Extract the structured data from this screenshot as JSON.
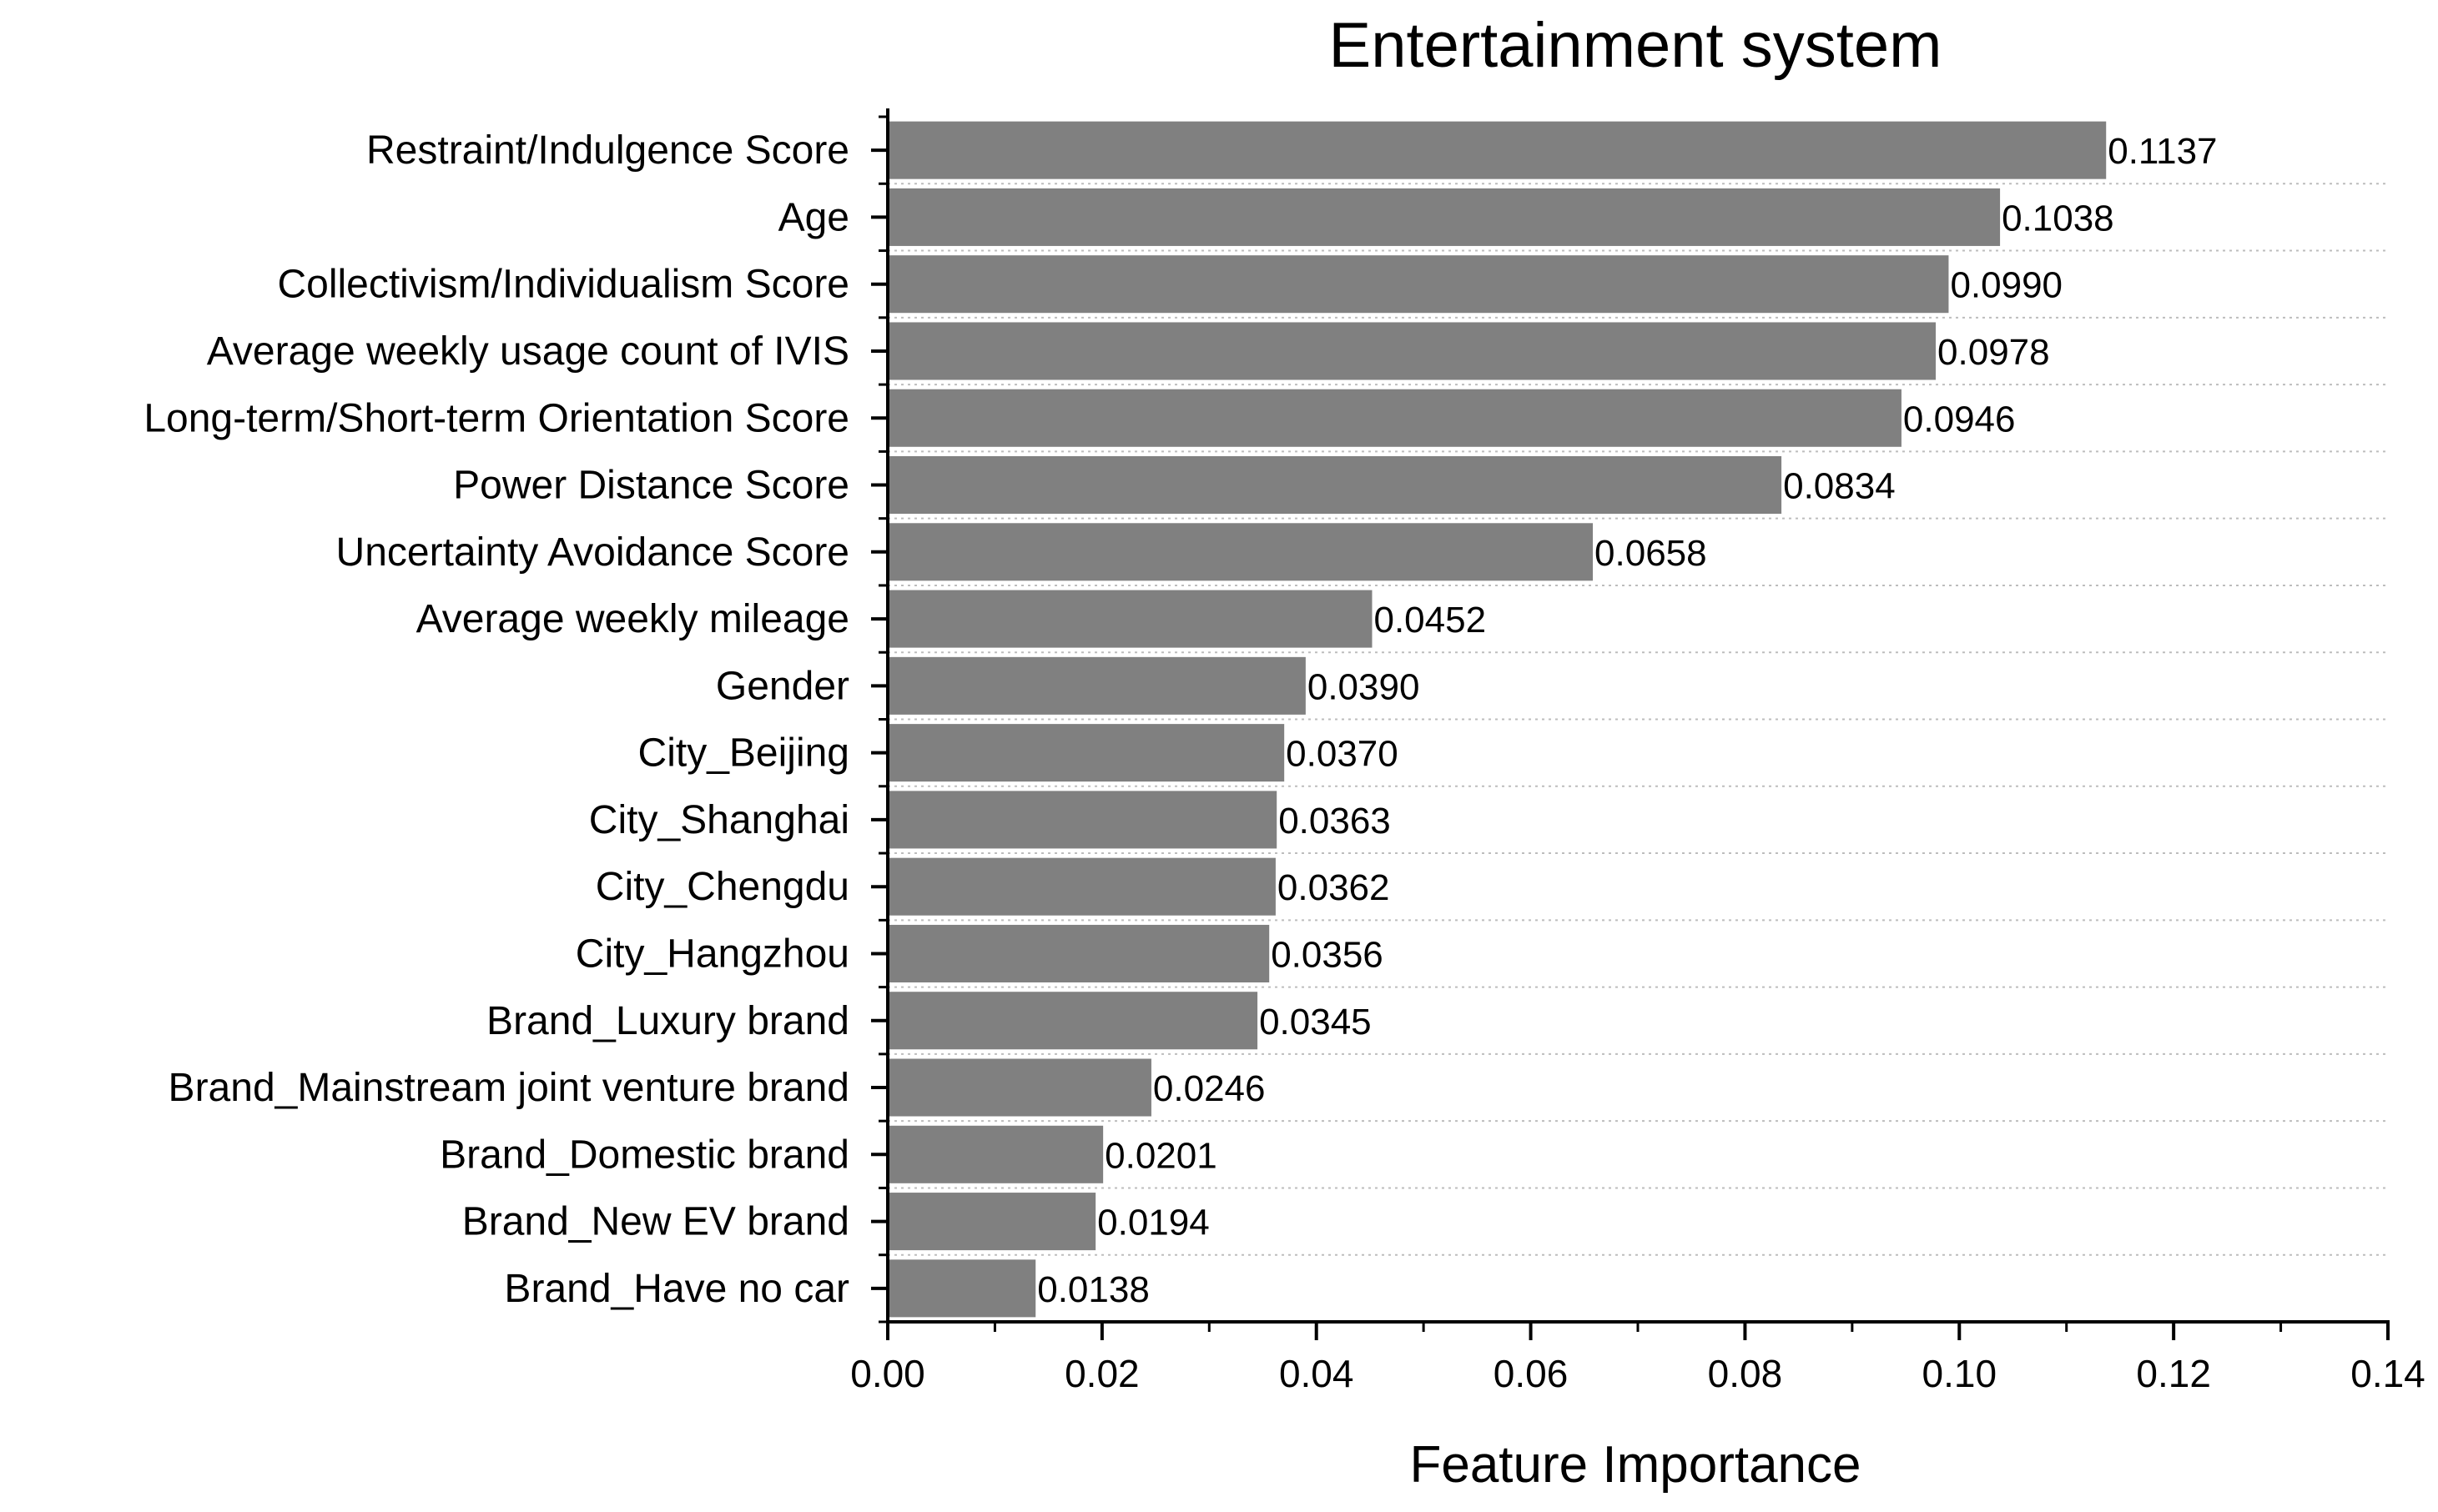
{
  "chart_data": {
    "type": "bar",
    "orientation": "horizontal",
    "title": "Entertainment system",
    "xlabel": "Feature Importance",
    "ylabel": "",
    "xlim": [
      0,
      0.14
    ],
    "xticks": [
      "0.00",
      "0.02",
      "0.04",
      "0.06",
      "0.08",
      "0.10",
      "0.12",
      "0.14"
    ],
    "categories": [
      "Restraint/Indulgence Score",
      "Age",
      "Collectivism/Individualism Score",
      "Average weekly usage count of IVIS",
      "Long-term/Short-term Orientation Score",
      "Power Distance Score",
      "Uncertainty Avoidance Score",
      "Average weekly mileage",
      "Gender",
      "City_Beijing",
      "City_Shanghai",
      "City_Chengdu",
      "City_Hangzhou",
      "Brand_Luxury brand",
      "Brand_Mainstream joint venture brand",
      "Brand_Domestic brand",
      "Brand_New EV brand",
      "Brand_Have no car"
    ],
    "values": [
      0.1137,
      0.1038,
      0.099,
      0.0978,
      0.0946,
      0.0834,
      0.0658,
      0.0452,
      0.039,
      0.037,
      0.0363,
      0.0362,
      0.0356,
      0.0345,
      0.0246,
      0.0201,
      0.0194,
      0.0138
    ],
    "value_labels": [
      "0.1137",
      "0.1038",
      "0.0990",
      "0.0978",
      "0.0946",
      "0.0834",
      "0.0658",
      "0.0452",
      "0.0390",
      "0.0370",
      "0.0363",
      "0.0362",
      "0.0356",
      "0.0345",
      "0.0246",
      "0.0201",
      "0.0194",
      "0.0138"
    ],
    "grid": "horizontal dotted",
    "legend": "none",
    "colors": {
      "bar": "#808080",
      "axis": "#000000",
      "grid": "#bdbdbd"
    }
  }
}
